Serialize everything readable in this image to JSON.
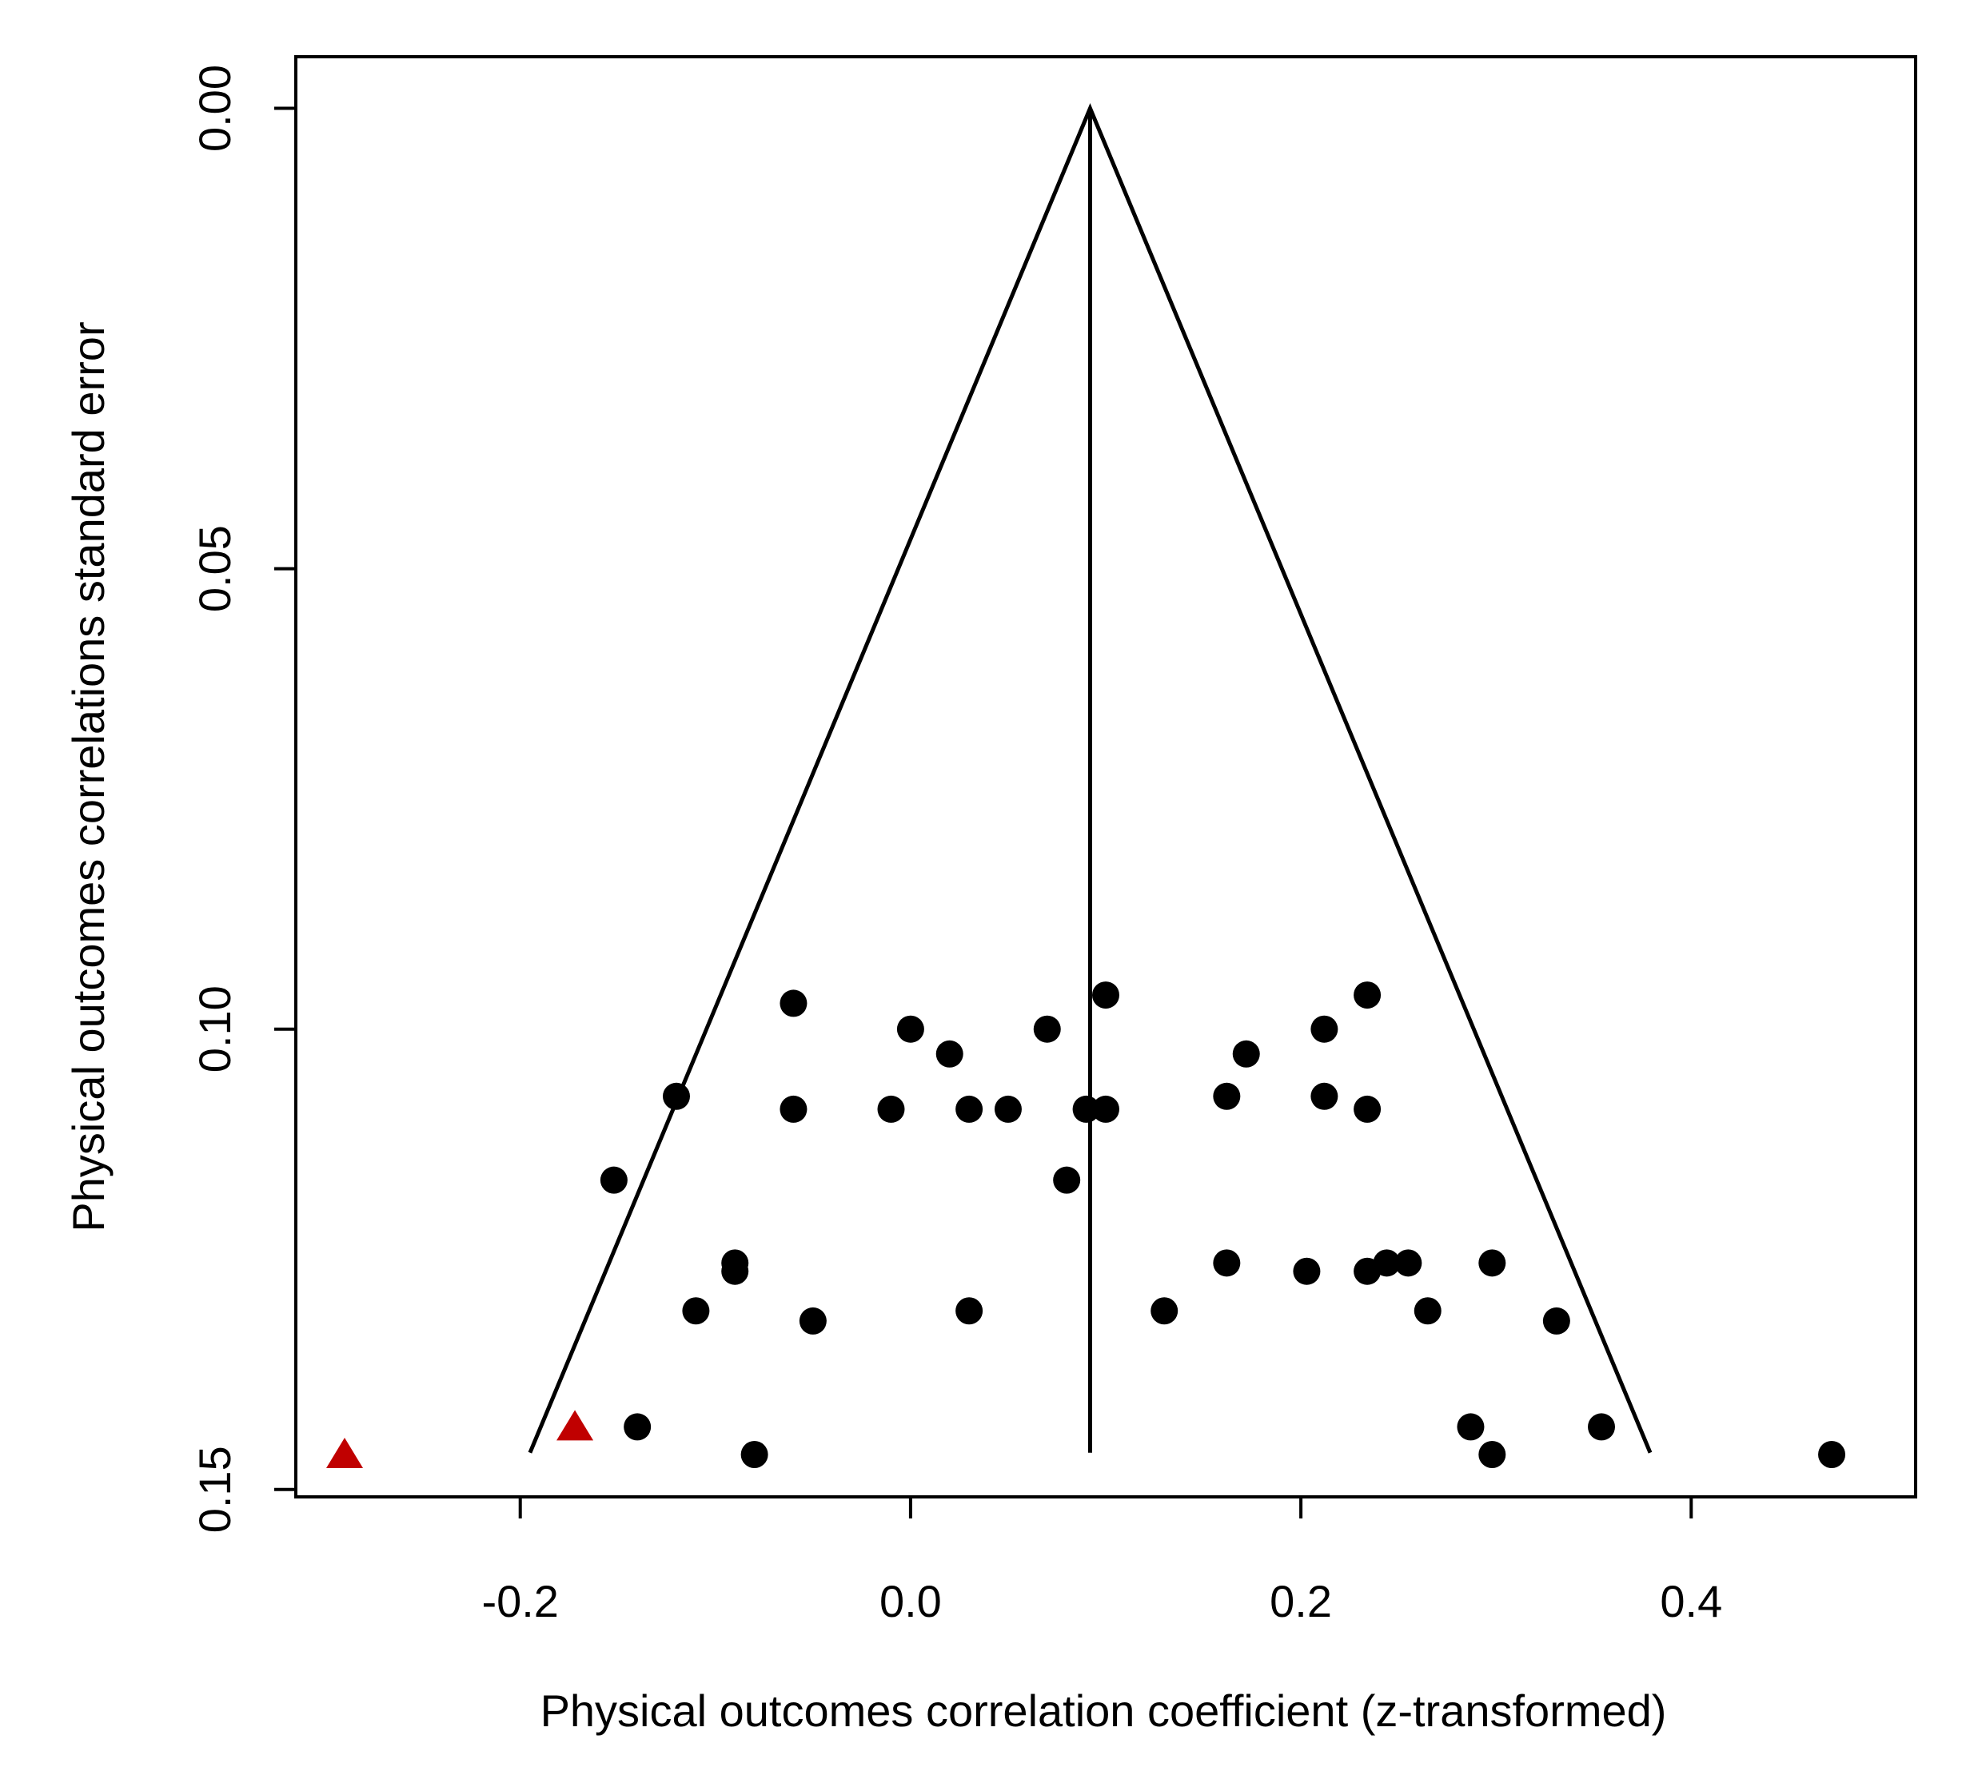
{
  "chart_data": {
    "type": "scatter",
    "title": "",
    "xlabel": "Physical outcomes correlation coefficient (z-transformed)",
    "ylabel": "Physical outcomes correlations standard error",
    "xlim": [
      -0.315,
      0.515
    ],
    "ylim": [
      0.1508,
      -0.0056
    ],
    "y_reversed": true,
    "grid": false,
    "legend": "none",
    "x_ticks": [
      {
        "value": -0.2,
        "label": "-0.2"
      },
      {
        "value": 0.0,
        "label": "0.0"
      },
      {
        "value": 0.2,
        "label": "0.2"
      },
      {
        "value": 0.4,
        "label": "0.4"
      }
    ],
    "y_ticks": [
      {
        "value": 0.0,
        "label": "0.00"
      },
      {
        "value": 0.05,
        "label": "0.05"
      },
      {
        "value": 0.1,
        "label": "0.10"
      },
      {
        "value": 0.15,
        "label": "0.15"
      }
    ],
    "funnel": {
      "center": 0.092,
      "apex_se": 0.0,
      "base_se": 0.146,
      "base_left": -0.195,
      "base_right": 0.379,
      "color": "#000000"
    },
    "series": [
      {
        "marker": "circle",
        "color": "#000000",
        "points": [
          {
            "x": -0.06,
            "y": 0.0972
          },
          {
            "x": 0.0,
            "y": 0.1
          },
          {
            "x": 0.1,
            "y": 0.0963
          },
          {
            "x": 0.234,
            "y": 0.0963
          },
          {
            "x": 0.07,
            "y": 0.1
          },
          {
            "x": 0.02,
            "y": 0.1027
          },
          {
            "x": 0.212,
            "y": 0.1
          },
          {
            "x": 0.172,
            "y": 0.1027
          },
          {
            "x": -0.12,
            "y": 0.1073
          },
          {
            "x": 0.162,
            "y": 0.1073
          },
          {
            "x": 0.212,
            "y": 0.1073
          },
          {
            "x": -0.06,
            "y": 0.1087
          },
          {
            "x": -0.01,
            "y": 0.1087
          },
          {
            "x": 0.03,
            "y": 0.1087
          },
          {
            "x": 0.05,
            "y": 0.1087
          },
          {
            "x": 0.09,
            "y": 0.1087
          },
          {
            "x": 0.1,
            "y": 0.1087
          },
          {
            "x": 0.234,
            "y": 0.1087
          },
          {
            "x": -0.152,
            "y": 0.1164
          },
          {
            "x": 0.08,
            "y": 0.1164
          },
          {
            "x": -0.09,
            "y": 0.1254
          },
          {
            "x": -0.09,
            "y": 0.1263
          },
          {
            "x": 0.162,
            "y": 0.1254
          },
          {
            "x": 0.203,
            "y": 0.1263
          },
          {
            "x": 0.234,
            "y": 0.1263
          },
          {
            "x": 0.244,
            "y": 0.1254
          },
          {
            "x": 0.255,
            "y": 0.1254
          },
          {
            "x": 0.298,
            "y": 0.1254
          },
          {
            "x": -0.11,
            "y": 0.1306
          },
          {
            "x": 0.03,
            "y": 0.1306
          },
          {
            "x": 0.13,
            "y": 0.1306
          },
          {
            "x": 0.265,
            "y": 0.1306
          },
          {
            "x": -0.05,
            "y": 0.1317
          },
          {
            "x": 0.331,
            "y": 0.1317
          },
          {
            "x": -0.14,
            "y": 0.1432
          },
          {
            "x": 0.287,
            "y": 0.1432
          },
          {
            "x": 0.354,
            "y": 0.1432
          },
          {
            "x": -0.08,
            "y": 0.1462
          },
          {
            "x": 0.298,
            "y": 0.1462
          },
          {
            "x": 0.472,
            "y": 0.1462
          }
        ]
      },
      {
        "marker": "triangle",
        "color": "#c00000",
        "points": [
          {
            "x": -0.29,
            "y": 0.1462
          },
          {
            "x": -0.172,
            "y": 0.1432
          }
        ]
      }
    ]
  }
}
